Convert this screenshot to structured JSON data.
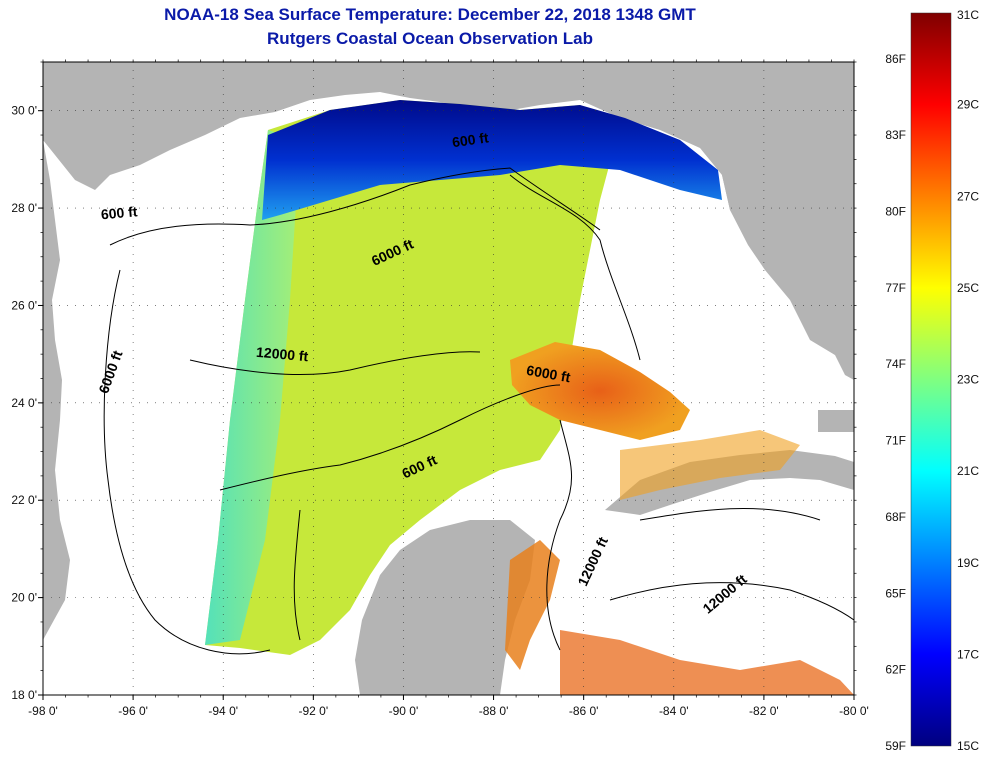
{
  "title": "NOAA-18 Sea Surface Temperature:  December 22, 2018 1348 GMT",
  "subtitle": "Rutgers Coastal Ocean Observation Lab",
  "map": {
    "lon_range": [
      -98,
      -80
    ],
    "lat_range": [
      18,
      31
    ],
    "x_ticks": [
      {
        "value": -98,
        "label": "-98 0'"
      },
      {
        "value": -96,
        "label": "-96 0'"
      },
      {
        "value": -94,
        "label": "-94 0'"
      },
      {
        "value": -92,
        "label": "-92 0'"
      },
      {
        "value": -90,
        "label": "-90 0'"
      },
      {
        "value": -88,
        "label": "-88 0'"
      },
      {
        "value": -86,
        "label": "-86 0'"
      },
      {
        "value": -84,
        "label": "-84 0'"
      },
      {
        "value": -82,
        "label": "-82 0'"
      },
      {
        "value": -80,
        "label": "-80 0'"
      }
    ],
    "y_ticks": [
      {
        "value": 18,
        "label": "18 0'"
      },
      {
        "value": 20,
        "label": "20 0'"
      },
      {
        "value": 22,
        "label": "22 0'"
      },
      {
        "value": 24,
        "label": "24 0'"
      },
      {
        "value": 26,
        "label": "26 0'"
      },
      {
        "value": 28,
        "label": "28 0'"
      },
      {
        "value": 30,
        "label": "30 0'"
      }
    ],
    "grid": "dotted",
    "contour_labels": [
      {
        "text": "600 ft",
        "lon": -96.3,
        "lat": 27.8,
        "angle": -5
      },
      {
        "text": "600 ft",
        "lon": -88.5,
        "lat": 29.3,
        "angle": -8
      },
      {
        "text": "6000 ft",
        "lon": -90.2,
        "lat": 27.0,
        "angle": -25
      },
      {
        "text": "12000 ft",
        "lon": -92.7,
        "lat": 24.9,
        "angle": 5
      },
      {
        "text": "6000 ft",
        "lon": -86.8,
        "lat": 24.5,
        "angle": 10
      },
      {
        "text": "6000 ft",
        "lon": -96.4,
        "lat": 24.6,
        "angle": -70
      },
      {
        "text": "600 ft",
        "lon": -89.6,
        "lat": 22.6,
        "angle": -25
      },
      {
        "text": "12000 ft",
        "lon": -85.7,
        "lat": 20.7,
        "angle": -65
      },
      {
        "text": "12000 ft",
        "lon": -82.8,
        "lat": 20.0,
        "angle": -40
      }
    ],
    "colors": {
      "land": "#b4b4b4",
      "no_data": "#ffffff",
      "ocean_base": "#c6e83a"
    }
  },
  "colorbar": {
    "celsius_range": [
      15,
      31
    ],
    "celsius_labels": [
      {
        "value": 31,
        "label": "31C"
      },
      {
        "value": 29,
        "label": "29C"
      },
      {
        "value": 27,
        "label": "27C"
      },
      {
        "value": 25,
        "label": "25C"
      },
      {
        "value": 23,
        "label": "23C"
      },
      {
        "value": 21,
        "label": "21C"
      },
      {
        "value": 19,
        "label": "19C"
      },
      {
        "value": 17,
        "label": "17C"
      },
      {
        "value": 15,
        "label": "15C"
      }
    ],
    "fahrenheit_labels": [
      {
        "value": 86,
        "label": "86F"
      },
      {
        "value": 83,
        "label": "83F"
      },
      {
        "value": 80,
        "label": "80F"
      },
      {
        "value": 77,
        "label": "77F"
      },
      {
        "value": 74,
        "label": "74F"
      },
      {
        "value": 71,
        "label": "71F"
      },
      {
        "value": 68,
        "label": "68F"
      },
      {
        "value": 65,
        "label": "65F"
      },
      {
        "value": 62,
        "label": "62F"
      },
      {
        "value": 59,
        "label": "59F"
      }
    ],
    "stops": [
      "#00007f",
      "#0000ff",
      "#0080ff",
      "#00ffff",
      "#80ff80",
      "#ffff00",
      "#ff8000",
      "#ff0000",
      "#7f0000"
    ]
  }
}
